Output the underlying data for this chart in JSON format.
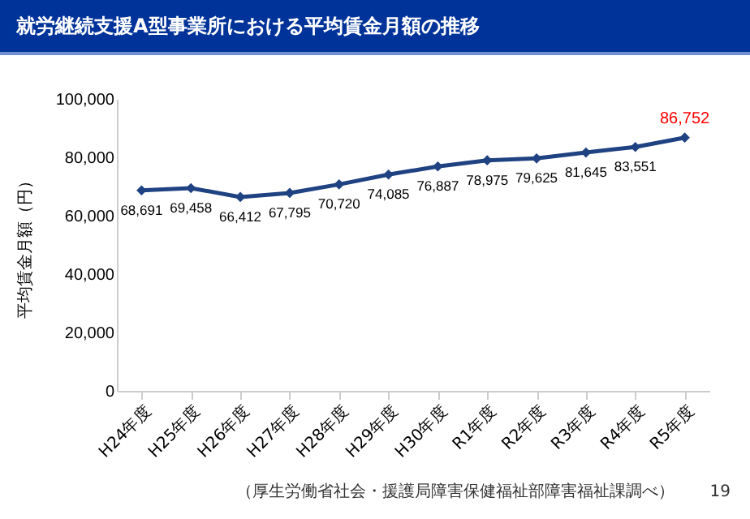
{
  "chart_data": {
    "type": "line",
    "title": "就労継続支援A型事業所における平均賃金月額の推移",
    "ylabel": "平均賃金月額（円）",
    "categories": [
      "H24年度",
      "H25年度",
      "H26年度",
      "H27年度",
      "H28年度",
      "H29年度",
      "H30年度",
      "R1年度",
      "R2年度",
      "R3年度",
      "R4年度",
      "R5年度"
    ],
    "series": [
      {
        "color": "#1f4282",
        "values": [
          68691,
          69458,
          66412,
          67795,
          70720,
          74085,
          76887,
          78975,
          79625,
          81645,
          83551,
          86752
        ]
      }
    ],
    "value_labels": [
      "68,691",
      "69,458",
      "66,412",
      "67,795",
      "70,720",
      "74,085",
      "76,887",
      "78,975",
      "79,625",
      "81,645",
      "83,551",
      null
    ],
    "ylim": [
      0,
      100000
    ],
    "yticks": [
      0,
      {
        "value": 20000,
        "label": "20,000"
      },
      {
        "value": 40000,
        "label": "40,000"
      },
      {
        "value": 60000,
        "label": "60,000"
      },
      {
        "value": 80000,
        "label": "80,000"
      },
      {
        "value": 100000,
        "label": "100,000"
      }
    ],
    "grid": false,
    "marker": "diamond",
    "line_style": "solid",
    "annotations": [
      {
        "text": "86,752",
        "x": "R5年度",
        "y": 86752
      },
      "（厚生労働省社会・援護局障害保健福祉部障害福祉課調べ）",
      "19"
    ]
  }
}
